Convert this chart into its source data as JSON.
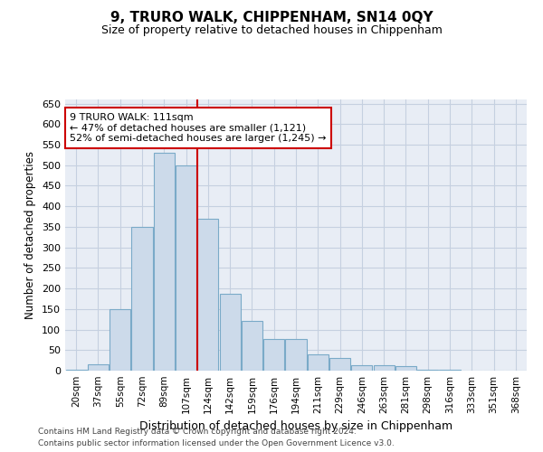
{
  "title": "9, TRURO WALK, CHIPPENHAM, SN14 0QY",
  "subtitle": "Size of property relative to detached houses in Chippenham",
  "xlabel": "Distribution of detached houses by size in Chippenham",
  "ylabel": "Number of detached properties",
  "categories": [
    "20sqm",
    "37sqm",
    "55sqm",
    "72sqm",
    "89sqm",
    "107sqm",
    "124sqm",
    "142sqm",
    "159sqm",
    "176sqm",
    "194sqm",
    "211sqm",
    "229sqm",
    "246sqm",
    "263sqm",
    "281sqm",
    "298sqm",
    "316sqm",
    "333sqm",
    "351sqm",
    "368sqm"
  ],
  "values": [
    2,
    15,
    150,
    350,
    530,
    500,
    370,
    188,
    122,
    78,
    78,
    40,
    30,
    14,
    14,
    10,
    2,
    2,
    0,
    0,
    0
  ],
  "bar_color": "#ccdaea",
  "bar_edge_color": "#7aaac8",
  "grid_color": "#c5d0e0",
  "background_color": "#e8edf5",
  "vline_x": 5.5,
  "vline_color": "#cc0000",
  "annotation_text": "9 TRURO WALK: 111sqm\n← 47% of detached houses are smaller (1,121)\n52% of semi-detached houses are larger (1,245) →",
  "annotation_box_color": "white",
  "annotation_box_edge": "#cc0000",
  "ylim": [
    0,
    660
  ],
  "yticks": [
    0,
    50,
    100,
    150,
    200,
    250,
    300,
    350,
    400,
    450,
    500,
    550,
    600,
    650
  ],
  "footnote1": "Contains HM Land Registry data © Crown copyright and database right 2024.",
  "footnote2": "Contains public sector information licensed under the Open Government Licence v3.0."
}
